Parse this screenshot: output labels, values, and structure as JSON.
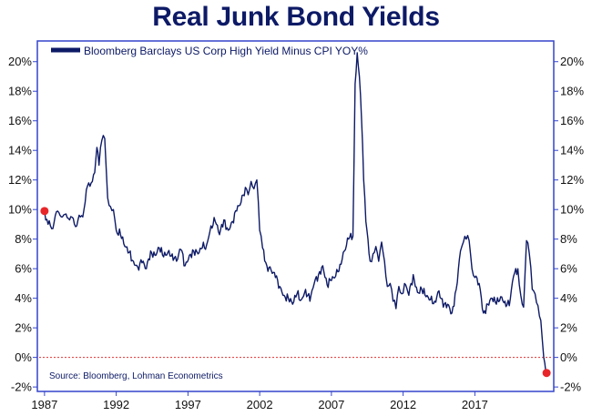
{
  "chart_data": {
    "type": "line",
    "title": "Real Junk Bond Yields",
    "legend": {
      "label": "Bloomberg Barclays US Corp High Yield Minus CPI YOY%",
      "placement": "top-left"
    },
    "source": "Source: Bloomberg, Lohman Econometrics",
    "x_tick_labels": [
      "1987",
      "1992",
      "1997",
      "2002",
      "2007",
      "2012",
      "2017"
    ],
    "y_tick_labels": [
      "-2%",
      "0%",
      "2%",
      "4%",
      "6%",
      "8%",
      "10%",
      "12%",
      "14%",
      "16%",
      "18%",
      "20%"
    ],
    "xlim": [
      1986.5,
      2022.5
    ],
    "ylim": [
      -2.3,
      21.4
    ],
    "grid": false,
    "reference_line": {
      "y": 0,
      "style": "dotted",
      "color": "#e03030"
    },
    "colors": {
      "line": "#0d1a66",
      "marker": "#e8262a",
      "axis": "#3344cc",
      "title": "#0d1a66"
    },
    "series": [
      {
        "name": "Bloomberg Barclays US Corp High Yield Minus CPI YOY%",
        "x": [
          1987.0,
          1987.25,
          1987.5,
          1987.75,
          1988.0,
          1988.25,
          1988.5,
          1988.75,
          1989.0,
          1989.25,
          1989.5,
          1989.75,
          1990.0,
          1990.25,
          1990.5,
          1990.65,
          1990.8,
          1991.0,
          1991.2,
          1991.4,
          1991.6,
          1991.8,
          1992.0,
          1992.3,
          1992.6,
          1992.9,
          1993.2,
          1993.5,
          1993.8,
          1994.1,
          1994.4,
          1994.7,
          1995.0,
          1995.3,
          1995.6,
          1995.9,
          1996.2,
          1996.5,
          1996.8,
          1997.1,
          1997.4,
          1997.7,
          1998.0,
          1998.3,
          1998.6,
          1998.9,
          1999.2,
          1999.5,
          1999.8,
          2000.1,
          2000.4,
          2000.7,
          2001.0,
          2001.2,
          2001.4,
          2001.6,
          2001.8,
          2002.0,
          2002.2,
          2002.5,
          2002.8,
          2003.1,
          2003.4,
          2003.7,
          2004.0,
          2004.3,
          2004.6,
          2004.9,
          2005.2,
          2005.5,
          2005.8,
          2006.1,
          2006.4,
          2006.7,
          2007.0,
          2007.3,
          2007.6,
          2007.9,
          2008.2,
          2008.5,
          2008.65,
          2008.8,
          2008.95,
          2009.1,
          2009.25,
          2009.4,
          2009.55,
          2009.7,
          2009.9,
          2010.1,
          2010.3,
          2010.5,
          2010.7,
          2010.9,
          2011.1,
          2011.3,
          2011.5,
          2011.7,
          2011.9,
          2012.1,
          2012.4,
          2012.7,
          2013.0,
          2013.3,
          2013.6,
          2013.9,
          2014.2,
          2014.5,
          2014.8,
          2015.1,
          2015.4,
          2015.7,
          2016.0,
          2016.2,
          2016.4,
          2016.6,
          2016.8,
          2017.0,
          2017.3,
          2017.6,
          2017.9,
          2018.2,
          2018.5,
          2018.8,
          2019.1,
          2019.4,
          2019.7,
          2020.0,
          2020.2,
          2020.4,
          2020.6,
          2020.8,
          2021.0,
          2021.2,
          2021.4,
          2021.6,
          2021.8,
          2021.95
        ],
        "values": [
          9.9,
          9.0,
          8.7,
          9.6,
          9.8,
          9.5,
          9.7,
          9.3,
          9.4,
          8.9,
          9.5,
          10.0,
          11.6,
          11.8,
          12.5,
          14.2,
          13.0,
          14.7,
          14.8,
          10.8,
          10.2,
          10.0,
          8.6,
          8.3,
          7.5,
          7.1,
          6.5,
          6.1,
          6.4,
          6.0,
          7.2,
          6.9,
          7.4,
          6.8,
          7.1,
          7.0,
          6.5,
          7.3,
          6.2,
          6.9,
          7.2,
          7.0,
          7.4,
          7.6,
          8.9,
          9.2,
          8.3,
          9.3,
          8.6,
          9.2,
          9.9,
          10.5,
          11.5,
          11.0,
          11.9,
          11.4,
          12.0,
          8.6,
          7.4,
          6.2,
          5.9,
          5.4,
          4.8,
          4.2,
          4.0,
          3.6,
          4.3,
          3.9,
          4.6,
          3.8,
          5.0,
          5.6,
          6.2,
          4.9,
          5.2,
          5.5,
          6.3,
          7.2,
          8.0,
          8.2,
          18.5,
          20.6,
          19.0,
          16.2,
          12.0,
          9.2,
          8.0,
          6.5,
          7.0,
          7.5,
          6.5,
          7.8,
          6.5,
          4.8,
          5.0,
          3.8,
          3.3,
          4.8,
          4.3,
          5.0,
          4.2,
          5.6,
          4.4,
          4.6,
          4.1,
          3.9,
          3.8,
          4.5,
          3.4,
          3.6,
          3.0,
          4.6,
          7.2,
          7.8,
          8.0,
          7.9,
          6.0,
          5.4,
          5.0,
          3.0,
          3.6,
          4.0,
          3.6,
          4.1,
          3.8,
          3.5,
          5.5,
          6.0,
          4.2,
          3.4,
          7.9,
          7.0,
          4.6,
          4.3,
          3.5,
          2.5,
          0.0,
          -1.0
        ]
      }
    ],
    "highlighted_points": [
      {
        "x": 1987.0,
        "y": 9.9
      },
      {
        "x": 2022.0,
        "y": -1.05
      }
    ]
  }
}
